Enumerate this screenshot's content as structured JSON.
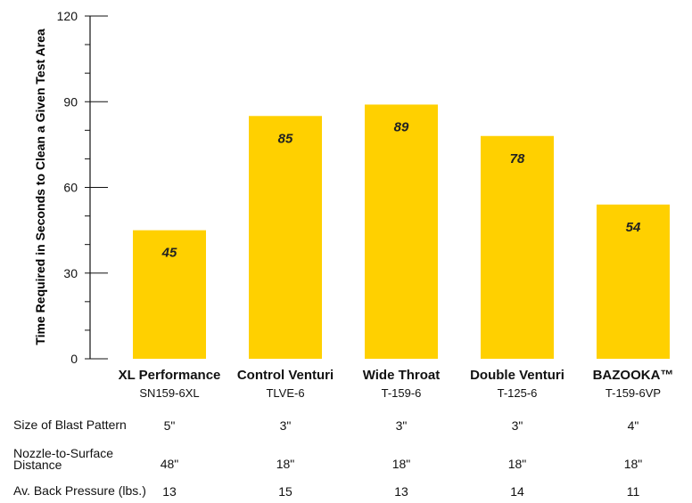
{
  "colors": {
    "bar": "#FFD000",
    "axis": "#111111"
  },
  "chart_data": {
    "type": "bar",
    "ylabel": "Time Required in Seconds to Clean a Given Test Area",
    "xlabel": "",
    "title": "",
    "ylim": [
      0,
      120
    ],
    "yticks": [
      0,
      30,
      60,
      90,
      120
    ],
    "minor_tick_step": 10,
    "categories": [
      {
        "name": "XL Performance",
        "code": "SN159-6XL"
      },
      {
        "name": "Control Venturi",
        "code": "TLVE-6"
      },
      {
        "name": "Wide Throat",
        "code": "T-159-6"
      },
      {
        "name": "Double Venturi",
        "code": "T-125-6"
      },
      {
        "name": "BAZOOKA™",
        "code": "T-159-6VP"
      }
    ],
    "values": [
      45,
      85,
      89,
      78,
      54
    ],
    "data_labels": [
      "45",
      "85",
      "89",
      "78",
      "54"
    ],
    "grid": false,
    "legend": "none"
  },
  "table": {
    "rows": [
      {
        "label": "Size of Blast Pattern",
        "values": [
          "5\"",
          "3\"",
          "3\"",
          "3\"",
          "4\""
        ]
      },
      {
        "label": "Nozzle-to-Surface Distance",
        "label_lines": [
          "Nozzle-to-Surface",
          "Distance"
        ],
        "values": [
          "48\"",
          "18\"",
          "18\"",
          "18\"",
          "18\""
        ]
      },
      {
        "label": "Av. Back Pressure (lbs.)",
        "values": [
          "13",
          "15",
          "13",
          "14",
          "11"
        ]
      }
    ]
  }
}
